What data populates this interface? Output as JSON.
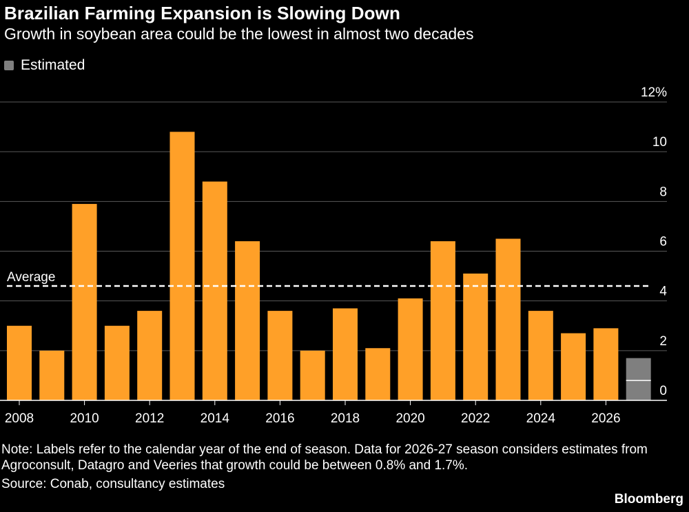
{
  "title": "Brazilian Farming Expansion is Slowing Down",
  "subtitle": "Growth in soybean area could be the lowest in almost two decades",
  "legend": {
    "estimated_label": "Estimated",
    "estimated_color": "#7f7f7f"
  },
  "note": "Note: Labels refer to the calendar year of the end of season. Data for 2026-27 season considers estimates from Agroconsult, Datagro and Veeries that growth could be between 0.8% and 1.7%.",
  "source": "Source: Conab, consultancy estimates",
  "brand": "Bloomberg",
  "chart_data": {
    "type": "bar",
    "title": "Brazilian Farming Expansion is Slowing Down",
    "subtitle": "Growth in soybean area could be the lowest in almost two decades",
    "x": [
      2008,
      2009,
      2010,
      2011,
      2012,
      2013,
      2014,
      2015,
      2016,
      2017,
      2018,
      2019,
      2020,
      2021,
      2022,
      2023,
      2024,
      2025,
      2026
    ],
    "values": [
      3.0,
      2.0,
      7.9,
      3.0,
      3.6,
      10.8,
      8.8,
      6.4,
      3.6,
      2.0,
      3.7,
      2.1,
      4.1,
      6.4,
      5.1,
      6.5,
      3.6,
      2.7,
      2.9
    ],
    "estimated": {
      "x": 2027,
      "low": 0.8,
      "high": 1.7
    },
    "average": {
      "label": "Average",
      "value": 4.6
    },
    "y_ticks": [
      "0",
      "2",
      "4",
      "6",
      "8",
      "10",
      "12%"
    ],
    "x_ticks": [
      "2008",
      "2010",
      "2012",
      "2014",
      "2016",
      "2018",
      "2020",
      "2022",
      "2024",
      "2026"
    ],
    "ylim": [
      0,
      12
    ],
    "grid": true,
    "bar_color": "#ffa028",
    "estimated_color": "#7f7f7f",
    "y_axis_side": "right"
  }
}
